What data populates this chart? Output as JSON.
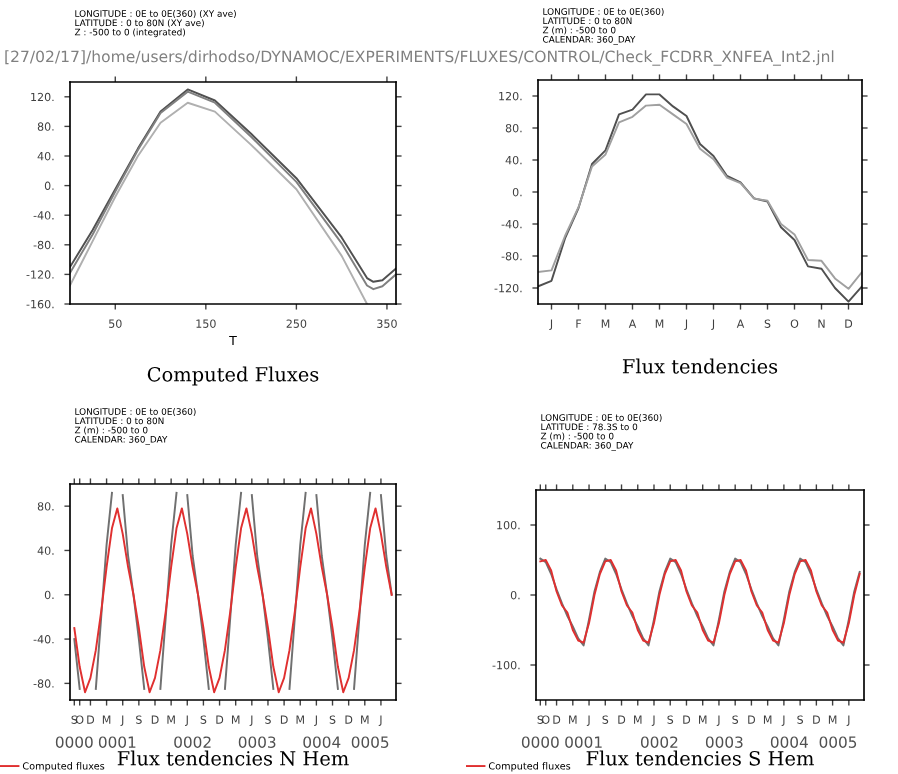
{
  "chart_data": [
    {
      "type": "line",
      "title": "Computed Fluxes",
      "subtitle": "LONGITUDE : 0E to 0E(360) (XY ave)\nLATITUDE : 0 to 80N (XY ave)\nZ : -500 to 0 (integrated)",
      "xlabel": "T",
      "annotations": [
        "[27/02/17]/home/users/dirhodso/DYNAMOC/EXPERIMENTS/FLUXES/CONTROL/Check_FCDRR_XNFEA_Int2.jnl"
      ],
      "x": [
        0,
        25,
        50,
        75,
        100,
        130,
        160,
        200,
        250,
        300,
        328,
        335,
        345,
        360
      ],
      "series": [
        {
          "color": "#505050",
          "values": [
            -110,
            -60,
            -5,
            50,
            100,
            130,
            115,
            70,
            10,
            -70,
            -125,
            -130,
            -128,
            -112
          ]
        },
        {
          "color": "#808080",
          "values": [
            -118,
            -66,
            -8,
            48,
            98,
            127,
            112,
            66,
            5,
            -78,
            -135,
            -140,
            -136,
            -120
          ]
        },
        {
          "color": "#b0b0b0",
          "values": [
            -135,
            -75,
            -15,
            40,
            85,
            112,
            100,
            55,
            -5,
            -95,
            -160,
            null,
            null,
            null
          ]
        }
      ],
      "xlim": [
        0,
        360
      ],
      "xticks": [
        50,
        150,
        250,
        350
      ],
      "ylim": [
        -160,
        140
      ],
      "yticks": [
        {
          "value": -160,
          "label": "-160."
        },
        {
          "value": -120,
          "label": "-120."
        },
        {
          "value": -80,
          "label": "-80."
        },
        {
          "value": -40,
          "label": "-40."
        },
        {
          "value": 0,
          "label": "0."
        },
        {
          "value": 40,
          "label": "40."
        },
        {
          "value": 80,
          "label": "80."
        },
        {
          "value": 120,
          "label": "120."
        }
      ],
      "grid": false
    },
    {
      "type": "line",
      "title": "Flux tendencies",
      "subtitle": "LONGITUDE : 0E to 0E(360)\nLATITUDE : 0 to 80N\nZ (m) : -500 to 0\nCALENDAR: 360_DAY",
      "categories": [
        null,
        "J",
        null,
        "F",
        null,
        "M",
        null,
        "A",
        null,
        "M",
        null,
        "J",
        null,
        "J",
        null,
        "A",
        null,
        "S",
        null,
        "O",
        null,
        "N",
        null,
        "D",
        null
      ],
      "series": [
        {
          "color": "#505050",
          "values": [
            -118,
            -111,
            -58,
            -20,
            35,
            52,
            97,
            103,
            122,
            122,
            107,
            95,
            60,
            45,
            20,
            12,
            -8,
            -12,
            -44,
            -60,
            -93,
            -96,
            -120,
            -137,
            -118
          ]
        },
        {
          "color": "#a0a0a0",
          "values": [
            -100,
            -98,
            -55,
            -19,
            32,
            47,
            87,
            94,
            108,
            109,
            97,
            85,
            54,
            41,
            18,
            11,
            -8,
            -11,
            -40,
            -53,
            -85,
            -86,
            -108,
            -121,
            -100
          ]
        }
      ],
      "ylim": [
        -140,
        140
      ],
      "yticks": [
        {
          "value": -120,
          "label": "-120."
        },
        {
          "value": -80,
          "label": "-80."
        },
        {
          "value": -40,
          "label": "-40."
        },
        {
          "value": 0,
          "label": "0."
        },
        {
          "value": 40,
          "label": "40."
        },
        {
          "value": 80,
          "label": "80."
        },
        {
          "value": 120,
          "label": "120."
        }
      ],
      "grid": false
    },
    {
      "type": "line",
      "title": "Flux tendencies N Hem",
      "subtitle": "LONGITUDE : 0E to 0E(360)\nLATITUDE : 0 to 80N\nZ (m) : -500 to 0\nCALENDAR: 360_DAY",
      "legend": "bottom left",
      "annotations": [
        "0000",
        "0001",
        "0002",
        "0003",
        "0004",
        "0005"
      ],
      "categories": [
        "S",
        "O",
        null,
        "D",
        null,
        null,
        "M",
        null,
        null,
        "J",
        null,
        null,
        "S",
        null,
        null,
        "D",
        null,
        null,
        "M",
        null,
        null,
        "J",
        null,
        null,
        "S",
        null,
        null,
        "D",
        null,
        null,
        "M",
        null,
        null,
        "J",
        null,
        null,
        "S",
        null,
        null,
        "D",
        null,
        null,
        "M",
        null,
        null,
        "J",
        null,
        null,
        "S",
        null,
        null,
        "D",
        null,
        null,
        "M",
        null,
        null,
        "J",
        null,
        null
      ],
      "series": [
        {
          "color": "#707070",
          "values": [
            -40,
            -85,
            null,
            null,
            -85,
            -20,
            45,
            92,
            null,
            90,
            35,
            0,
            -40,
            -85,
            null,
            null,
            -85,
            -20,
            45,
            92,
            null,
            90,
            35,
            0,
            -40,
            -85,
            null,
            null,
            -85,
            -20,
            45,
            92,
            null,
            90,
            35,
            0,
            -40,
            -85,
            null,
            null,
            -85,
            -20,
            45,
            92,
            null,
            90,
            35,
            0,
            -40,
            -85,
            null,
            null,
            -85,
            -20,
            45,
            92,
            null,
            90,
            35,
            0
          ]
        },
        {
          "name": "Computed fluxes",
          "color": "#e03030",
          "values": [
            -30,
            -65,
            -88,
            -75,
            -50,
            -15,
            25,
            60,
            78,
            55,
            25,
            0,
            -30,
            -65,
            -88,
            -75,
            -50,
            -15,
            25,
            60,
            78,
            55,
            25,
            0,
            -30,
            -65,
            -88,
            -75,
            -50,
            -15,
            25,
            60,
            78,
            55,
            25,
            0,
            -30,
            -65,
            -88,
            -75,
            -50,
            -15,
            25,
            60,
            78,
            55,
            25,
            0,
            -30,
            -65,
            -88,
            -75,
            -50,
            -15,
            25,
            60,
            78,
            55,
            25,
            0
          ]
        }
      ],
      "ylim": [
        -95,
        100
      ],
      "yticks": [
        {
          "value": -80,
          "label": "-80."
        },
        {
          "value": -40,
          "label": "-40."
        },
        {
          "value": 0,
          "label": "0."
        },
        {
          "value": 40,
          "label": "40."
        },
        {
          "value": 80,
          "label": "80."
        }
      ],
      "grid": false
    },
    {
      "type": "line",
      "title": "Flux tendencies S Hem",
      "subtitle": "LONGITUDE : 0E to 0E(360)\nLATITUDE : 78.3S to 0\nZ (m) : -500 to 0\nCALENDAR: 360_DAY",
      "legend": "bottom left",
      "annotations": [
        "0000",
        "0001",
        "0002",
        "0003",
        "0004",
        "0005"
      ],
      "categories": [
        "S",
        "O",
        null,
        "D",
        null,
        null,
        "M",
        null,
        null,
        "J",
        null,
        null,
        "S",
        null,
        null,
        "D",
        null,
        null,
        "M",
        null,
        null,
        "J",
        null,
        null,
        "S",
        null,
        null,
        "D",
        null,
        null,
        "M",
        null,
        null,
        "J",
        null,
        null,
        "S",
        null,
        null,
        "D",
        null,
        null,
        "M",
        null,
        null,
        "J",
        null,
        null,
        "S",
        null,
        null,
        "D",
        null,
        null,
        "M",
        null,
        null,
        "J",
        null,
        null
      ],
      "series": [
        {
          "color": "#707070",
          "values": [
            52,
            47,
            30,
            8,
            -12,
            -30,
            -45,
            -62,
            -72,
            -35,
            5,
            33,
            52,
            47,
            30,
            8,
            -12,
            -30,
            -45,
            -62,
            -72,
            -35,
            5,
            33,
            52,
            47,
            30,
            8,
            -12,
            -30,
            -45,
            -62,
            -72,
            -35,
            5,
            33,
            52,
            47,
            30,
            8,
            -12,
            -30,
            -45,
            -62,
            -72,
            -35,
            5,
            33,
            52,
            47,
            30,
            8,
            -12,
            -30,
            -45,
            -62,
            -72,
            -35,
            5,
            33
          ]
        },
        {
          "name": "Computed fluxes",
          "color": "#e03030",
          "values": [
            48,
            50,
            35,
            5,
            -15,
            -25,
            -50,
            -65,
            -68,
            -40,
            0,
            30,
            48,
            50,
            35,
            5,
            -15,
            -25,
            -50,
            -65,
            -68,
            -40,
            0,
            30,
            48,
            50,
            35,
            5,
            -15,
            -25,
            -50,
            -65,
            -68,
            -40,
            0,
            30,
            48,
            50,
            35,
            5,
            -15,
            -25,
            -50,
            -65,
            -68,
            -40,
            0,
            30,
            48,
            50,
            35,
            5,
            -15,
            -25,
            -50,
            -65,
            -68,
            -40,
            0,
            30
          ]
        }
      ],
      "ylim": [
        -150,
        150
      ],
      "yticks": [
        {
          "value": -100,
          "label": "-100."
        },
        {
          "value": 0,
          "label": "0."
        },
        {
          "value": 100,
          "label": "100."
        }
      ],
      "grid": false
    }
  ]
}
